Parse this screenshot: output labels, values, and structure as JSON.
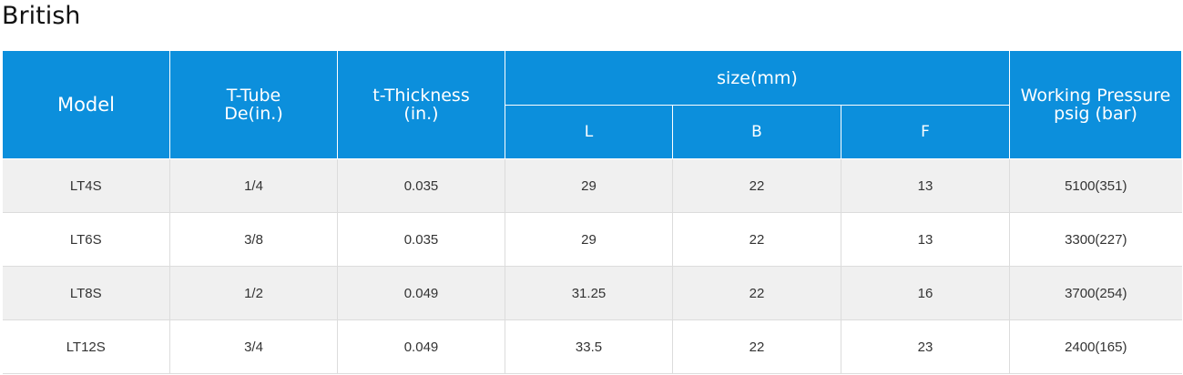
{
  "title": "British",
  "table": {
    "headers": {
      "model": "Model",
      "tube_l1": "T-Tube",
      "tube_l2": "De(in.)",
      "thick_l1": "t-Thickness",
      "thick_l2": "(in.)",
      "size": "size(mm)",
      "size_l": "L",
      "size_b": "B",
      "size_f": "F",
      "pressure_l1": "Working Pressure",
      "pressure_l2": "psig (bar)"
    },
    "rows": [
      {
        "model": "LT4S",
        "tube": "1/4",
        "thickness": "0.035",
        "l": "29",
        "b": "22",
        "f": "13",
        "pressure": "5100(351)"
      },
      {
        "model": "LT6S",
        "tube": "3/8",
        "thickness": "0.035",
        "l": "29",
        "b": "22",
        "f": "13",
        "pressure": "3300(227)"
      },
      {
        "model": "LT8S",
        "tube": "1/2",
        "thickness": "0.049",
        "l": "31.25",
        "b": "22",
        "f": "16",
        "pressure": "3700(254)"
      },
      {
        "model": "LT12S",
        "tube": "3/4",
        "thickness": "0.049",
        "l": "33.5",
        "b": "22",
        "f": "23",
        "pressure": "2400(165)"
      }
    ]
  },
  "colors": {
    "header_bg": "#0c8fdc",
    "row_alt_bg": "#f0f0f0"
  }
}
